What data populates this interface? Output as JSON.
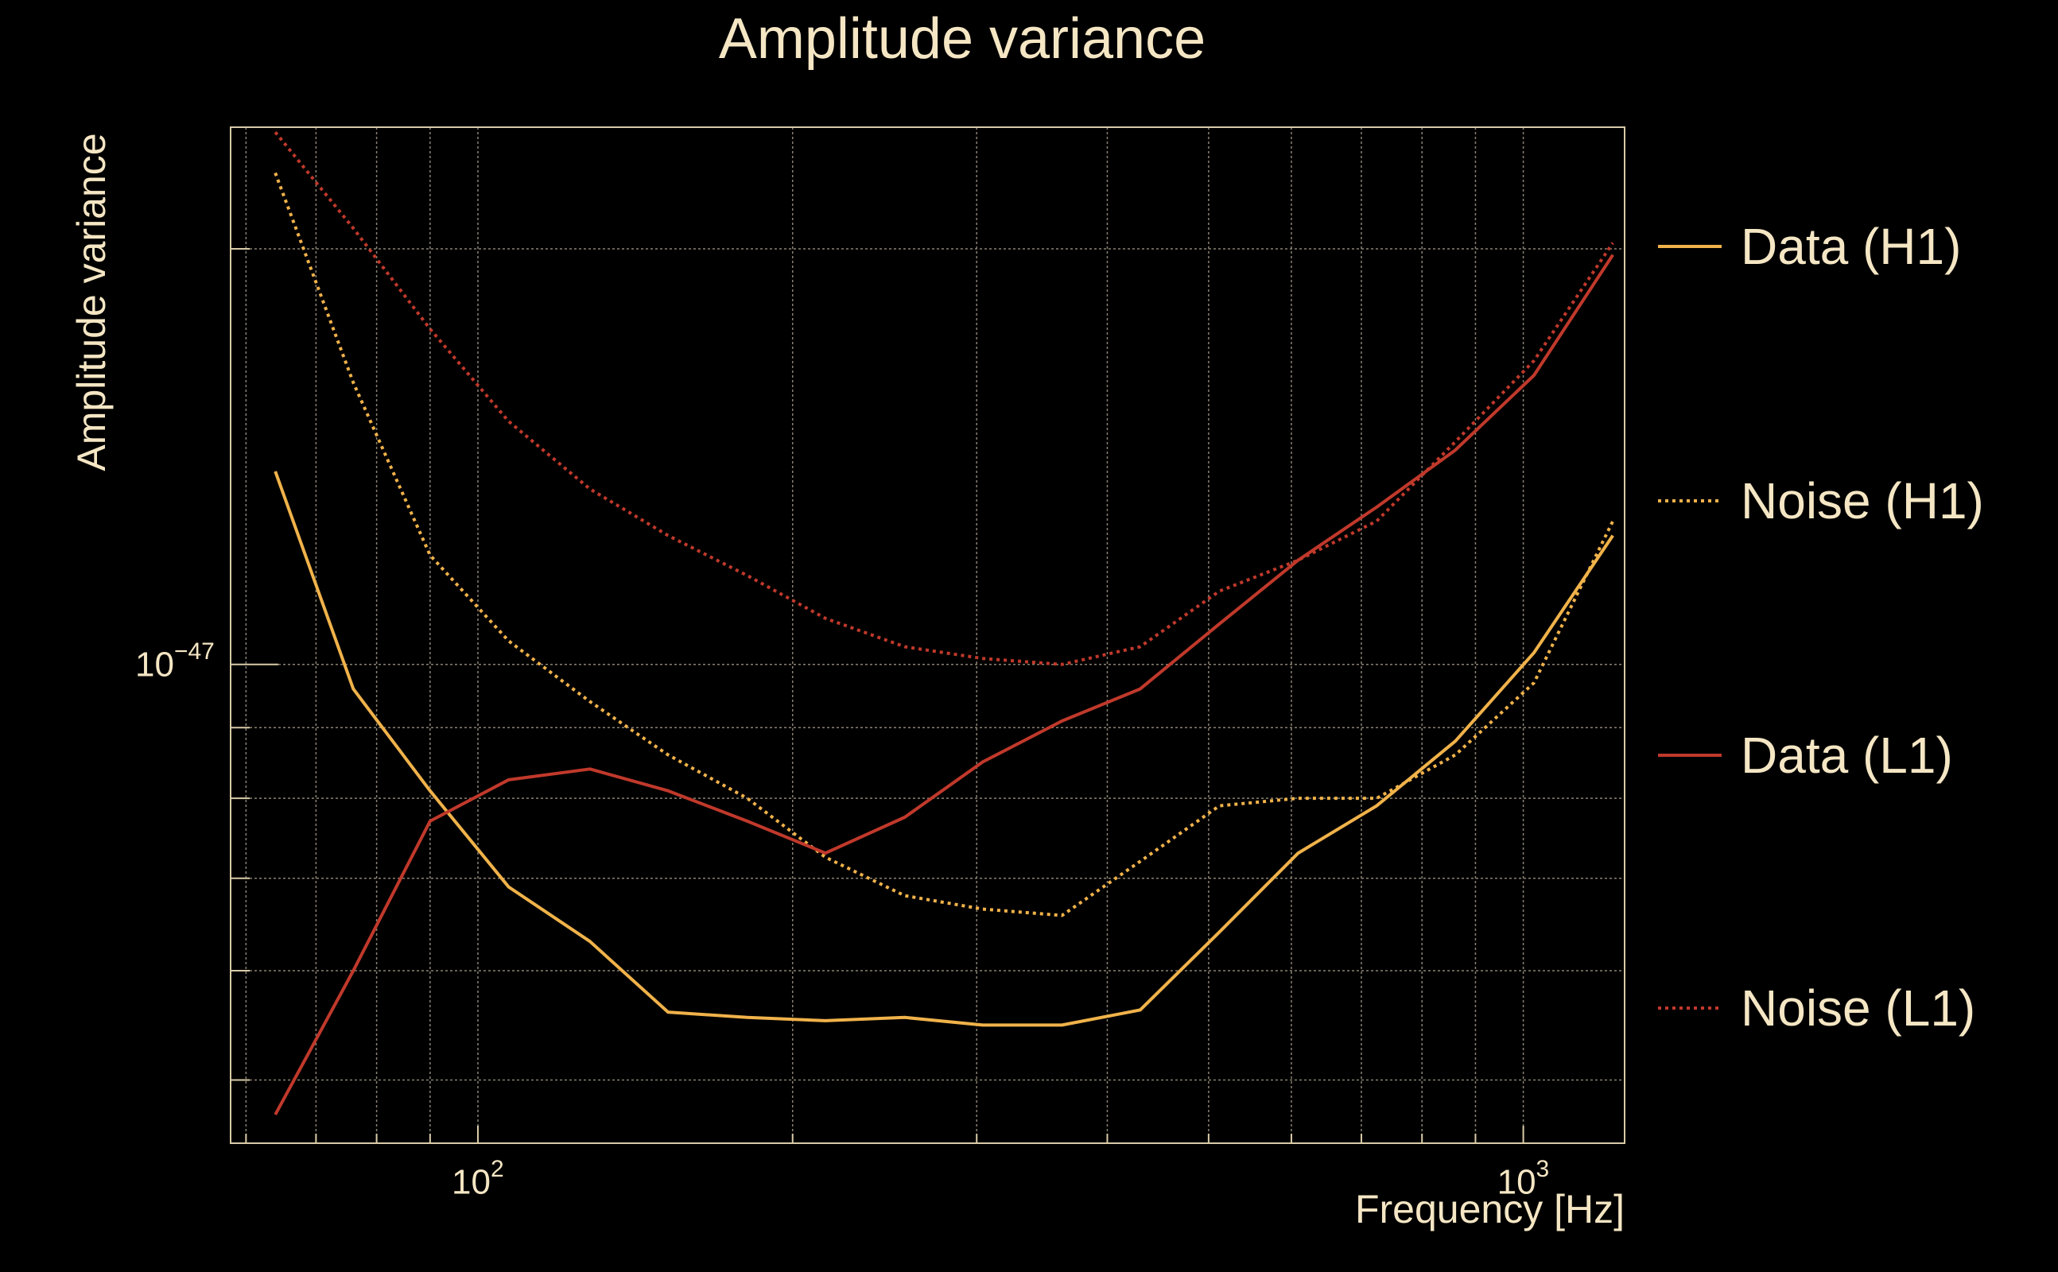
{
  "chart_data": {
    "type": "line",
    "title": "Amplitude variance",
    "xlabel": "Frequency [Hz]",
    "ylabel": "Amplitude variance",
    "xscale": "log",
    "yscale": "log",
    "xlim": [
      58,
      1250
    ],
    "ylim": [
      4.5e-48,
      2.45e-47
    ],
    "grid": true,
    "legend_position": "right",
    "x_tick_labels": [
      {
        "value": 100,
        "base": "10",
        "exp": "2"
      },
      {
        "value": 1000,
        "base": "10",
        "exp": "3"
      }
    ],
    "y_tick_labels": [
      {
        "value": 1e-47,
        "base": "10",
        "exp": "−47"
      }
    ],
    "series": [
      {
        "name": "Data (H1)",
        "color": "#f0b24a",
        "style": "solid",
        "x": [
          64,
          76,
          90,
          107,
          128,
          152,
          181,
          215,
          256,
          304,
          362,
          430,
          512,
          609,
          724,
          861,
          1024,
          1218
        ],
        "y": [
          1.38e-47,
          9.6e-48,
          8.1e-48,
          6.9e-48,
          6.3e-48,
          5.6e-48,
          5.55e-48,
          5.52e-48,
          5.55e-48,
          5.48e-48,
          5.48e-48,
          5.62e-48,
          6.4e-48,
          7.3e-48,
          7.9e-48,
          8.8e-48,
          1.02e-47,
          1.24e-47
        ]
      },
      {
        "name": "Noise (H1)",
        "color": "#f0b24a",
        "style": "dotted",
        "x": [
          64,
          76,
          90,
          107,
          128,
          152,
          181,
          215,
          256,
          304,
          362,
          430,
          512,
          609,
          724,
          861,
          1024,
          1218
        ],
        "y": [
          2.27e-47,
          1.6e-47,
          1.2e-47,
          1.04e-47,
          9.4e-48,
          8.6e-48,
          8e-48,
          7.25e-48,
          6.8e-48,
          6.65e-48,
          6.58e-48,
          7.2e-48,
          7.9e-48,
          8e-48,
          8e-48,
          8.6e-48,
          9.7e-48,
          1.27e-47
        ]
      },
      {
        "name": "Data (L1)",
        "color": "#c0392b",
        "style": "solid",
        "x": [
          64,
          76,
          90,
          107,
          128,
          152,
          181,
          215,
          256,
          304,
          362,
          430,
          512,
          609,
          724,
          861,
          1024,
          1218
        ],
        "y": [
          4.72e-48,
          6e-48,
          7.7e-48,
          8.25e-48,
          8.4e-48,
          8.1e-48,
          7.7e-48,
          7.3e-48,
          7.75e-48,
          8.5e-48,
          9.1e-48,
          9.6e-48,
          1.07e-47,
          1.19e-47,
          1.3e-47,
          1.43e-47,
          1.62e-47,
          1.98e-47
        ]
      },
      {
        "name": "Noise (L1)",
        "color": "#c0392b",
        "style": "dotted",
        "x": [
          64,
          76,
          90,
          107,
          128,
          152,
          181,
          215,
          256,
          304,
          362,
          430,
          512,
          609,
          724,
          861,
          1024,
          1218
        ],
        "y": [
          2.43e-47,
          2.07e-47,
          1.75e-47,
          1.5e-47,
          1.34e-47,
          1.24e-47,
          1.16e-47,
          1.08e-47,
          1.03e-47,
          1.01e-47,
          1e-47,
          1.03e-47,
          1.13e-47,
          1.19e-47,
          1.27e-47,
          1.45e-47,
          1.66e-47,
          2.02e-47
        ]
      }
    ]
  }
}
